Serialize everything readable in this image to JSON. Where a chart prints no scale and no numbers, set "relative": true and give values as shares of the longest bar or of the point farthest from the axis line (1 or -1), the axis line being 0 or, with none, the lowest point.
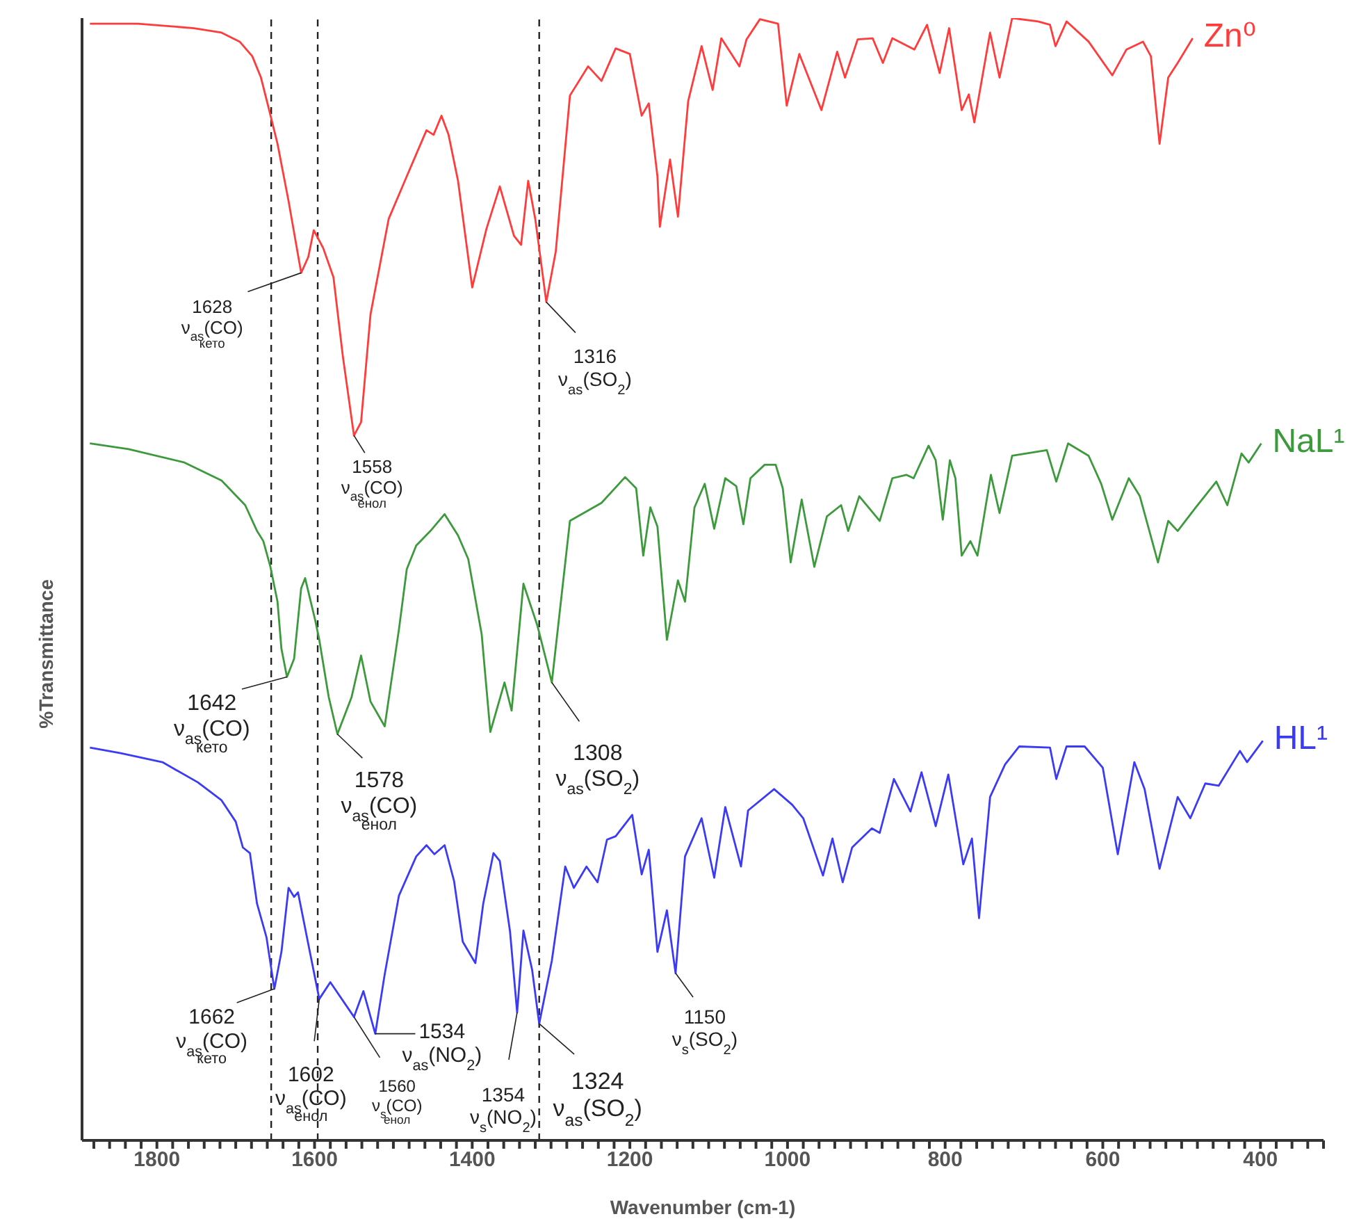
{
  "chart_data": {
    "type": "line",
    "relative": true,
    "xlabel": "Wavenumber (cm-1)",
    "ylabel": "%Transmittance",
    "xlim": [
      1895,
      320
    ],
    "xticks": [
      {
        "value": 1880,
        "label": null
      },
      {
        "value": 1860,
        "label": null
      },
      {
        "value": 1840,
        "label": null
      },
      {
        "value": 1820,
        "label": null
      },
      1800,
      {
        "value": 1780,
        "label": null
      },
      {
        "value": 1760,
        "label": null
      },
      {
        "value": 1740,
        "label": null
      },
      {
        "value": 1720,
        "label": null
      },
      {
        "value": 1700,
        "label": null
      },
      {
        "value": 1680,
        "label": null
      },
      {
        "value": 1660,
        "label": null
      },
      {
        "value": 1640,
        "label": null
      },
      {
        "value": 1620,
        "label": null
      },
      1600,
      {
        "value": 1580,
        "label": null
      },
      {
        "value": 1560,
        "label": null
      },
      {
        "value": 1540,
        "label": null
      },
      {
        "value": 1520,
        "label": null
      },
      {
        "value": 1500,
        "label": null
      },
      {
        "value": 1480,
        "label": null
      },
      {
        "value": 1460,
        "label": null
      },
      {
        "value": 1440,
        "label": null
      },
      {
        "value": 1420,
        "label": null
      },
      1400,
      {
        "value": 1380,
        "label": null
      },
      {
        "value": 1360,
        "label": null
      },
      {
        "value": 1340,
        "label": null
      },
      {
        "value": 1320,
        "label": null
      },
      {
        "value": 1300,
        "label": null
      },
      {
        "value": 1280,
        "label": null
      },
      {
        "value": 1260,
        "label": null
      },
      {
        "value": 1240,
        "label": null
      },
      {
        "value": 1220,
        "label": null
      },
      1200,
      {
        "value": 1180,
        "label": null
      },
      {
        "value": 1160,
        "label": null
      },
      {
        "value": 1140,
        "label": null
      },
      {
        "value": 1120,
        "label": null
      },
      {
        "value": 1100,
        "label": null
      },
      {
        "value": 1080,
        "label": null
      },
      {
        "value": 1060,
        "label": null
      },
      {
        "value": 1040,
        "label": null
      },
      {
        "value": 1020,
        "label": null
      },
      1000,
      {
        "value": 980,
        "label": null
      },
      {
        "value": 960,
        "label": null
      },
      {
        "value": 940,
        "label": null
      },
      {
        "value": 920,
        "label": null
      },
      {
        "value": 900,
        "label": null
      },
      {
        "value": 880,
        "label": null
      },
      {
        "value": 860,
        "label": null
      },
      {
        "value": 840,
        "label": null
      },
      {
        "value": 820,
        "label": null
      },
      800,
      {
        "value": 780,
        "label": null
      },
      {
        "value": 760,
        "label": null
      },
      {
        "value": 740,
        "label": null
      },
      {
        "value": 720,
        "label": null
      },
      {
        "value": 700,
        "label": null
      },
      {
        "value": 680,
        "label": null
      },
      {
        "value": 660,
        "label": null
      },
      {
        "value": 640,
        "label": null
      },
      {
        "value": 620,
        "label": null
      },
      600,
      {
        "value": 580,
        "label": null
      },
      {
        "value": 560,
        "label": null
      },
      {
        "value": 540,
        "label": null
      },
      {
        "value": 520,
        "label": null
      },
      {
        "value": 500,
        "label": null
      },
      {
        "value": 480,
        "label": null
      },
      {
        "value": 460,
        "label": null
      },
      {
        "value": 440,
        "label": null
      },
      {
        "value": 420,
        "label": null
      },
      400,
      {
        "value": 380,
        "label": null
      },
      {
        "value": 360,
        "label": null
      },
      {
        "value": 340,
        "label": null
      },
      {
        "value": 320,
        "label": null
      }
    ],
    "grid": false,
    "legend": false,
    "series": [
      {
        "name": "Zn⁰",
        "color": "#ff3b3b",
        "x": [
          1885,
          1824,
          1753,
          1718,
          1695,
          1679,
          1668,
          1659,
          1647,
          1633,
          1617,
          1608,
          1601,
          1589,
          1576,
          1564,
          1550,
          1541,
          1529,
          1506,
          1483,
          1458,
          1449,
          1439,
          1430,
          1418,
          1400,
          1382,
          1365,
          1347,
          1338,
          1329,
          1320,
          1306,
          1294,
          1276,
          1253,
          1236,
          1218,
          1200,
          1185,
          1176,
          1165,
          1162,
          1149,
          1139,
          1126,
          1109,
          1095,
          1084,
          1061,
          1052,
          1035,
          1012,
          1001,
          985,
          957,
          937,
          927,
          911,
          892,
          879,
          867,
          839,
          823,
          807,
          795,
          779,
          770,
          763,
          743,
          731,
          715,
          682,
          667,
          660,
          646,
          618,
          588,
          570,
          549,
          539,
          528,
          517,
          505,
          486
        ],
        "values": [
          0.995,
          0.995,
          0.991,
          0.987,
          0.979,
          0.966,
          0.947,
          0.922,
          0.888,
          0.837,
          0.773,
          0.787,
          0.811,
          0.795,
          0.769,
          0.698,
          0.628,
          0.64,
          0.736,
          0.821,
          0.859,
          0.9,
          0.896,
          0.913,
          0.896,
          0.855,
          0.76,
          0.812,
          0.85,
          0.806,
          0.798,
          0.855,
          0.821,
          0.747,
          0.792,
          0.931,
          0.957,
          0.944,
          0.973,
          0.968,
          0.913,
          0.924,
          0.859,
          0.814,
          0.874,
          0.823,
          0.926,
          0.975,
          0.936,
          0.982,
          0.957,
          0.981,
          0.999,
          0.995,
          0.922,
          0.968,
          0.918,
          0.97,
          0.947,
          0.981,
          0.982,
          0.96,
          0.982,
          0.972,
          0.994,
          0.951,
          0.991,
          0.918,
          0.932,
          0.907,
          0.987,
          0.947,
          1,
          0.997,
          0.994,
          0.975,
          0.997,
          0.979,
          0.949,
          0.972,
          0.979,
          0.966,
          0.888,
          0.947,
          0.96,
          0.982
        ]
      },
      {
        "name": "NaL¹",
        "color": "#3c9a3c",
        "x": [
          1885,
          1836,
          1765,
          1718,
          1688,
          1673,
          1665,
          1656,
          1647,
          1642,
          1635,
          1626,
          1617,
          1612,
          1599,
          1594,
          1582,
          1571,
          1553,
          1541,
          1529,
          1511,
          1493,
          1483,
          1471,
          1453,
          1435,
          1418,
          1405,
          1388,
          1377,
          1359,
          1350,
          1335,
          1317,
          1299,
          1276,
          1236,
          1206,
          1192,
          1183,
          1174,
          1165,
          1153,
          1139,
          1130,
          1118,
          1105,
          1093,
          1079,
          1065,
          1056,
          1047,
          1029,
          1015,
          1006,
          996,
          982,
          966,
          950,
          932,
          923,
          909,
          883,
          867,
          849,
          840,
          821,
          812,
          803,
          794,
          787,
          779,
          768,
          759,
          742,
          731,
          715,
          671,
          659,
          644,
          618,
          602,
          588,
          567,
          553,
          530,
          517,
          505,
          482,
          456,
          442,
          424,
          415,
          399
        ],
        "values": [
          0.621,
          0.616,
          0.604,
          0.588,
          0.566,
          0.543,
          0.534,
          0.511,
          0.48,
          0.438,
          0.413,
          0.429,
          0.492,
          0.501,
          0.463,
          0.446,
          0.395,
          0.362,
          0.395,
          0.432,
          0.391,
          0.369,
          0.455,
          0.509,
          0.53,
          0.543,
          0.558,
          0.539,
          0.518,
          0.451,
          0.364,
          0.408,
          0.383,
          0.496,
          0.458,
          0.408,
          0.552,
          0.568,
          0.591,
          0.581,
          0.521,
          0.564,
          0.547,
          0.446,
          0.499,
          0.48,
          0.564,
          0.585,
          0.545,
          0.59,
          0.583,
          0.549,
          0.59,
          0.602,
          0.602,
          0.581,
          0.515,
          0.571,
          0.511,
          0.556,
          0.566,
          0.543,
          0.574,
          0.552,
          0.59,
          0.593,
          0.59,
          0.619,
          0.606,
          0.553,
          0.606,
          0.59,
          0.521,
          0.534,
          0.521,
          0.593,
          0.559,
          0.61,
          0.615,
          0.587,
          0.621,
          0.61,
          0.585,
          0.553,
          0.59,
          0.574,
          0.515,
          0.552,
          0.543,
          0.564,
          0.587,
          0.566,
          0.612,
          0.604,
          0.621
        ]
      },
      {
        "name": "HL¹",
        "color": "#3b3bf5",
        "x": [
          1885,
          1846,
          1793,
          1748,
          1718,
          1700,
          1691,
          1682,
          1673,
          1661,
          1651,
          1642,
          1633,
          1626,
          1621,
          1606,
          1594,
          1580,
          1550,
          1538,
          1523,
          1511,
          1493,
          1471,
          1458,
          1448,
          1435,
          1423,
          1412,
          1396,
          1386,
          1373,
          1365,
          1352,
          1343,
          1335,
          1324,
          1315,
          1299,
          1282,
          1271,
          1255,
          1241,
          1229,
          1218,
          1197,
          1185,
          1176,
          1165,
          1153,
          1142,
          1130,
          1109,
          1093,
          1079,
          1059,
          1050,
          1017,
          994,
          980,
          955,
          943,
          930,
          918,
          893,
          883,
          865,
          844,
          830,
          812,
          796,
          777,
          766,
          757,
          743,
          724,
          706,
          667,
          659,
          646,
          623,
          600,
          581,
          560,
          547,
          528,
          505,
          489,
          470,
          453,
          426,
          417,
          397
        ],
        "values": [
          0.35,
          0.345,
          0.337,
          0.319,
          0.303,
          0.284,
          0.261,
          0.256,
          0.211,
          0.181,
          0.135,
          0.168,
          0.225,
          0.217,
          0.221,
          0.168,
          0.126,
          0.141,
          0.11,
          0.133,
          0.095,
          0.148,
          0.218,
          0.253,
          0.263,
          0.255,
          0.263,
          0.231,
          0.177,
          0.158,
          0.211,
          0.256,
          0.249,
          0.186,
          0.114,
          0.187,
          0.152,
          0.104,
          0.16,
          0.244,
          0.225,
          0.244,
          0.23,
          0.268,
          0.271,
          0.29,
          0.237,
          0.259,
          0.168,
          0.205,
          0.149,
          0.253,
          0.287,
          0.234,
          0.297,
          0.244,
          0.294,
          0.313,
          0.299,
          0.287,
          0.236,
          0.269,
          0.23,
          0.261,
          0.278,
          0.274,
          0.322,
          0.293,
          0.328,
          0.28,
          0.326,
          0.246,
          0.269,
          0.198,
          0.306,
          0.335,
          0.351,
          0.35,
          0.322,
          0.351,
          0.351,
          0.332,
          0.255,
          0.337,
          0.313,
          0.242,
          0.306,
          0.287,
          0.318,
          0.316,
          0.347,
          0.337,
          0.356
        ]
      }
    ],
    "ref_lines": [
      {
        "axis": "x",
        "value": 1655,
        "color": "#222222",
        "line_style": "dashed"
      },
      {
        "axis": "x",
        "value": 1596,
        "color": "#222222",
        "line_style": "dashed"
      },
      {
        "axis": "x",
        "value": 1315,
        "color": "#222222",
        "line_style": "dashed"
      }
    ],
    "annotations": [
      {
        "text": "1628\nν$_{as}$(CO)\n$_{кето}$",
        "x": 1617,
        "y": 0.773
      },
      {
        "text": "1558\nν$_{as}$(CO)\n$_{енол}$",
        "x": 1550,
        "y": 0.628
      },
      {
        "text": "1316\nν$_{as}$(SO$_{2}$)",
        "x": 1306,
        "y": 0.747
      },
      {
        "text": "1642\nν$_{as}$(CO)\n$_{кето}$",
        "x": 1635,
        "y": 0.413
      },
      {
        "text": "1578\nν$_{as}$(CO)\n$_{енол}$",
        "x": 1571,
        "y": 0.362
      },
      {
        "text": "1308\nν$_{as}$(SO$_{2}$)",
        "x": 1299,
        "y": 0.408
      },
      {
        "text": "1662\nν$_{as}$(CO)\n$_{кето}$",
        "x": 1651,
        "y": 0.135
      },
      {
        "text": "1602\nν$_{as}$(CO)\n$_{енол}$",
        "x": 1594,
        "y": 0.126
      },
      {
        "text": "1560\nν$_{s}$(CO)\n$_{енол}$",
        "x": 1550,
        "y": 0.11
      },
      {
        "text": "1534\nν$_{as}$(NO$_{2}$)",
        "x": 1523,
        "y": 0.095
      },
      {
        "text": "1354\nν$_{s}$(NO$_{2}$)",
        "x": 1343,
        "y": 0.114
      },
      {
        "text": "1324\nν$_{as}$(SO$_{2}$)",
        "x": 1315,
        "y": 0.104
      },
      {
        "text": "1150\nν$_{s}$(SO$_{2}$)",
        "x": 1142,
        "y": 0.149
      }
    ]
  }
}
